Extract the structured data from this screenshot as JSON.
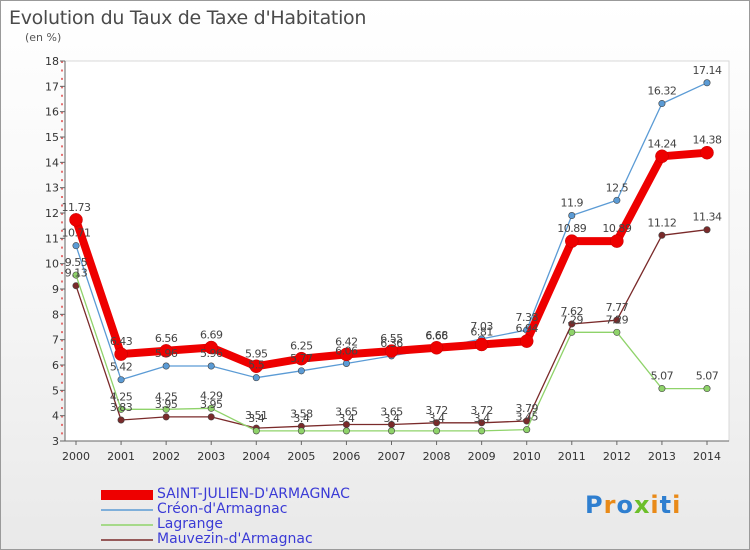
{
  "chart_data": {
    "type": "line",
    "title": "Evolution du Taux de Taxe d'Habitation",
    "ylabel": "(en %)",
    "xlabel": "",
    "x": [
      "2000",
      "2001",
      "2002",
      "2003",
      "2004",
      "2005",
      "2006",
      "2007",
      "2008",
      "2009",
      "2010",
      "2011",
      "2012",
      "2013",
      "2014"
    ],
    "ylim": [
      3,
      18
    ],
    "yticks": [
      3,
      4,
      5,
      6,
      7,
      8,
      9,
      10,
      11,
      12,
      13,
      14,
      15,
      16,
      17,
      18
    ],
    "grid": false,
    "legend_position": "bottom-left",
    "series": [
      {
        "name": "SAINT-JULIEN-D'ARMAGNAC",
        "color": "#ee0000",
        "values": [
          11.73,
          6.43,
          6.56,
          6.69,
          5.95,
          6.25,
          6.42,
          6.55,
          6.68,
          6.81,
          6.94,
          10.89,
          10.89,
          14.24,
          14.38
        ],
        "labels": [
          "11.73",
          "6.43",
          "6.56",
          "6.69",
          "5.95",
          "6.25",
          "6.42",
          "6.55",
          "6.68",
          "6.81",
          "6.94",
          "10.89",
          "10.89",
          "14.24",
          "14.38"
        ]
      },
      {
        "name": "Créon-d'Armagnac",
        "color": "#5b9bd5",
        "values": [
          10.71,
          5.42,
          5.96,
          5.96,
          5.5,
          5.77,
          6.06,
          6.36,
          6.66,
          7.03,
          7.38,
          11.9,
          12.5,
          16.32,
          17.14
        ],
        "labels": [
          "10.71",
          "5.42",
          "5.96",
          "5.96",
          "5.5",
          "5.77",
          "6.06",
          "6.36",
          "6.66",
          "7.03",
          "7.38",
          "11.9",
          "12.5",
          "16.32",
          "17.14"
        ]
      },
      {
        "name": "Lagrange",
        "color": "#8fd36a",
        "values": [
          9.55,
          4.25,
          4.25,
          4.29,
          3.4,
          3.4,
          3.4,
          3.4,
          3.4,
          3.4,
          3.45,
          7.29,
          7.29,
          5.07,
          5.07
        ],
        "labels": [
          "9.55",
          "4.25",
          "4.25",
          "4.29",
          "3.4",
          "3.4",
          "3.4",
          "3.4",
          "3.4",
          "3.4",
          "3.45",
          "7.29",
          "7.29",
          "5.07",
          "5.07"
        ]
      },
      {
        "name": "Mauvezin-d'Armagnac",
        "color": "#7a2a2a",
        "values": [
          9.13,
          3.83,
          3.95,
          3.95,
          3.51,
          3.58,
          3.65,
          3.65,
          3.72,
          3.72,
          3.79,
          7.62,
          7.77,
          11.12,
          11.34
        ],
        "labels": [
          "9.13",
          "3.83",
          "3.95",
          "3.95",
          "3.51",
          "3.58",
          "3.65",
          "3.65",
          "3.72",
          "3.72",
          "3.79",
          "7.62",
          "7.77",
          "11.12",
          "11.34"
        ]
      }
    ]
  },
  "logo": {
    "text": "Proxiti"
  }
}
